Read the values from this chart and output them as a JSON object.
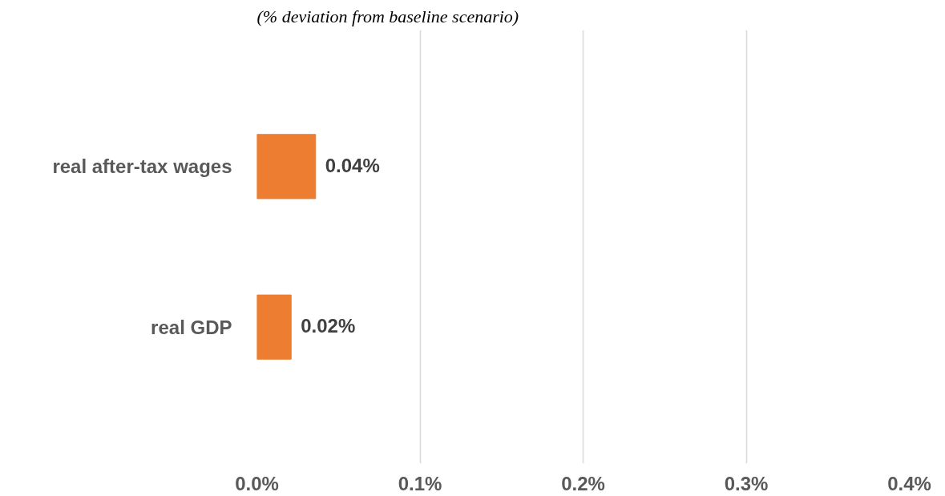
{
  "chart_data": {
    "type": "bar",
    "orientation": "horizontal",
    "title": "(% deviation from baseline scenario)",
    "categories": [
      "real after-tax wages",
      "real GDP"
    ],
    "values": [
      0.036,
      0.021
    ],
    "value_labels": [
      "0.04%",
      "0.02%"
    ],
    "color": "#ed7d31",
    "xlim": [
      0,
      0.4
    ],
    "xticks": [
      {
        "value": 0,
        "label": "0.0%"
      },
      {
        "value": 0.1,
        "label": "0.1%"
      },
      {
        "value": 0.2,
        "label": "0.2%"
      },
      {
        "value": 0.3,
        "label": "0.3%"
      },
      {
        "value": 0.4,
        "label": "0.4%"
      }
    ],
    "grid": "x"
  }
}
